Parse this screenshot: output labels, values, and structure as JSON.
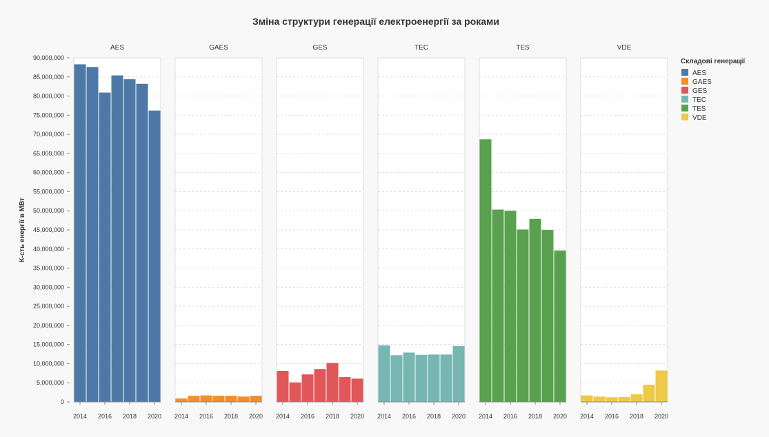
{
  "chart_data": {
    "type": "bar",
    "title": "Зміна структури генерації електроенергії за роками",
    "ylabel": "К-сть енергії в МВт",
    "legend_title": "Складові генерації",
    "legend_placement": "top-right",
    "ylim": [
      0,
      90000000
    ],
    "yticks": [
      "0",
      "5,000,000",
      "10,000,000",
      "15,000,000",
      "20,000,000",
      "25,000,000",
      "30,000,000",
      "35,000,000",
      "40,000,000",
      "45,000,000",
      "50,000,000",
      "55,000,000",
      "60,000,000",
      "65,000,000",
      "70,000,000",
      "75,000,000",
      "80,000,000",
      "85,000,000",
      "90,000,000"
    ],
    "x": [
      2014,
      2015,
      2016,
      2017,
      2018,
      2019,
      2020
    ],
    "xticks": [
      "2014",
      "2016",
      "2018",
      "2020"
    ],
    "series": [
      {
        "name": "AES",
        "color": "#4e79a7",
        "values": [
          88300000,
          87600000,
          80900000,
          85400000,
          84400000,
          83200000,
          76200000
        ]
      },
      {
        "name": "GAES",
        "color": "#f28e2b",
        "values": [
          900000,
          1600000,
          1700000,
          1600000,
          1600000,
          1400000,
          1600000
        ]
      },
      {
        "name": "GES",
        "color": "#e15759",
        "values": [
          8100000,
          5100000,
          7200000,
          8600000,
          10200000,
          6500000,
          6100000
        ]
      },
      {
        "name": "TEC",
        "color": "#76b7b2",
        "values": [
          14800000,
          12200000,
          12900000,
          12300000,
          12400000,
          12400000,
          14600000
        ]
      },
      {
        "name": "TES",
        "color": "#59a14f",
        "values": [
          68700000,
          50300000,
          50000000,
          45100000,
          47900000,
          45000000,
          39600000
        ]
      },
      {
        "name": "VDE",
        "color": "#edc948",
        "values": [
          1700000,
          1400000,
          1200000,
          1300000,
          2000000,
          4500000,
          8200000
        ]
      }
    ]
  }
}
